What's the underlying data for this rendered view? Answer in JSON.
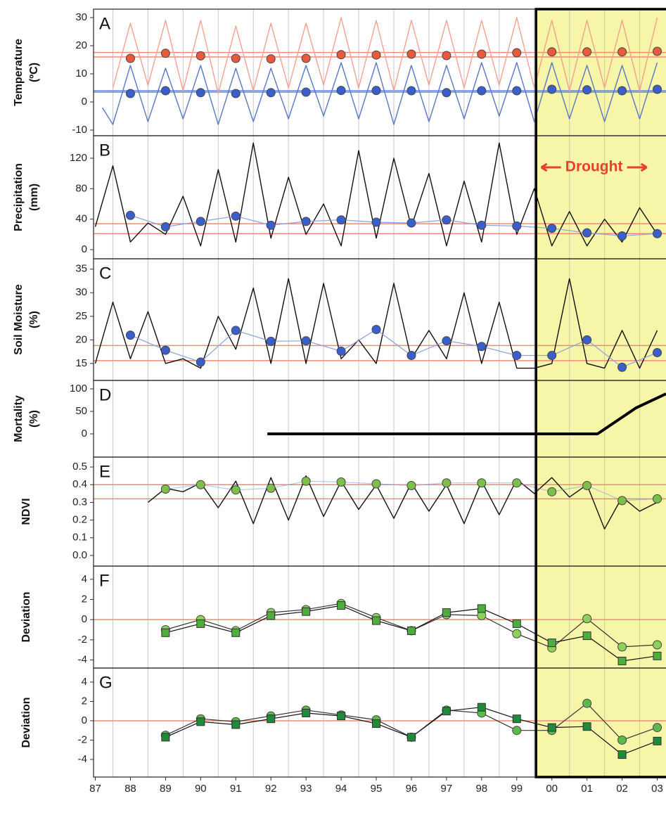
{
  "chart_data": [
    {
      "type": "line",
      "title": "A",
      "ylabel": [
        "Temperature",
        "(ºC)"
      ],
      "ylim": [
        -12,
        33
      ],
      "yticks": [
        -10,
        0,
        10,
        20,
        30
      ],
      "reference_lines": [
        {
          "value": 16,
          "color": "#f08a78"
        },
        {
          "value": 17.6,
          "color": "#f08a78"
        },
        {
          "value": 3.5,
          "color": "#6a86d8"
        },
        {
          "value": 4,
          "color": "#6a86d8"
        }
      ],
      "series": [
        {
          "style": "line",
          "color": "#f4a08c",
          "x": [
            1988.0,
            1988.5,
            1989.0,
            1989.5,
            1990.0,
            1990.5,
            1991.0,
            1991.5,
            1992.0,
            1992.5,
            1993.0,
            1993.5,
            1994.0,
            1994.5,
            1995.0,
            1995.5,
            1996.0,
            1996.5,
            1997.0,
            1997.5,
            1998.0,
            1998.5,
            1999.0,
            1999.5,
            2000.0,
            2000.5,
            2001.0,
            2001.5,
            2002.0,
            2002.5,
            2003.0,
            2003.5
          ],
          "values": [
            5,
            28,
            6,
            29,
            4,
            29,
            3,
            27,
            4,
            28,
            5,
            28,
            6,
            30,
            5,
            29,
            4,
            29,
            6,
            29,
            5,
            29,
            6,
            30,
            5,
            29,
            4,
            29,
            5,
            29,
            4,
            30
          ]
        },
        {
          "style": "line",
          "color": "#5878c8",
          "x": [
            1987.7,
            1988.0,
            1988.5,
            1989.0,
            1989.5,
            1990.0,
            1990.5,
            1991.0,
            1991.5,
            1992.0,
            1992.5,
            1993.0,
            1993.5,
            1994.0,
            1994.5,
            1995.0,
            1995.5,
            1996.0,
            1996.5,
            1997.0,
            1997.5,
            1998.0,
            1998.5,
            1999.0,
            1999.5,
            2000.0,
            2000.5,
            2001.0,
            2001.5,
            2002.0,
            2002.5,
            2003.0,
            2003.5
          ],
          "values": [
            -2,
            -8,
            13,
            -7,
            12,
            -6,
            13,
            -8,
            12,
            -7,
            12,
            -6,
            13,
            -5,
            14,
            -6,
            14,
            -8,
            13,
            -7,
            13,
            -6,
            14,
            -5,
            14,
            -7,
            14,
            -6,
            13,
            -7,
            13,
            -6,
            14
          ]
        },
        {
          "style": "dots",
          "color": "#e85a3c",
          "x": [
            1988.5,
            1989.5,
            1990.5,
            1991.5,
            1992.5,
            1993.5,
            1994.5,
            1995.5,
            1996.5,
            1997.5,
            1998.5,
            1999.5,
            2000.5,
            2001.5,
            2002.5,
            2003.5
          ],
          "values": [
            15.5,
            17.3,
            16.4,
            15.5,
            15.3,
            15.5,
            16.8,
            16.7,
            17,
            16.5,
            17,
            17.5,
            17.8,
            17.8,
            17.8,
            18
          ]
        },
        {
          "style": "dots",
          "color": "#3a5fcd",
          "x": [
            1988.5,
            1989.5,
            1990.5,
            1991.5,
            1992.5,
            1993.5,
            1994.5,
            1995.5,
            1996.5,
            1997.5,
            1998.5,
            1999.5,
            2000.5,
            2001.5,
            2002.5,
            2003.5
          ],
          "values": [
            3,
            4,
            3.3,
            3,
            3.3,
            3.5,
            4.1,
            4.1,
            4,
            3.3,
            4,
            4,
            4.5,
            4.3,
            4,
            4.5
          ]
        }
      ]
    },
    {
      "type": "line",
      "title": "B",
      "ylabel": [
        "Precipitation",
        "(mm)"
      ],
      "ylim": [
        -12,
        149.5
      ],
      "yticks": [
        0,
        40,
        80,
        120
      ],
      "annotation": "Drought",
      "reference_lines": [
        {
          "value": 34,
          "color": "#f08a78"
        },
        {
          "value": 21,
          "color": "#f08a78"
        }
      ],
      "series": [
        {
          "style": "line",
          "color": "#111111",
          "x": [
            1987.5,
            1988.0,
            1988.5,
            1989.0,
            1989.5,
            1990.0,
            1990.5,
            1991.0,
            1991.5,
            1992.0,
            1992.5,
            1993.0,
            1993.5,
            1994.0,
            1994.5,
            1995.0,
            1995.5,
            1996.0,
            1996.5,
            1997.0,
            1997.5,
            1998.0,
            1998.5,
            1999.0,
            1999.5,
            2000.0,
            2000.5,
            2001.0,
            2001.5,
            2002.0,
            2002.5,
            2003.0,
            2003.5
          ],
          "values": [
            30,
            110,
            10,
            35,
            20,
            70,
            5,
            105,
            10,
            140,
            15,
            95,
            20,
            60,
            5,
            130,
            15,
            120,
            30,
            100,
            5,
            90,
            10,
            140,
            20,
            80,
            5,
            50,
            5,
            40,
            10,
            55,
            20
          ]
        },
        {
          "style": "line+dots",
          "color": "#3a5fcd",
          "x": [
            1988.5,
            1989.5,
            1990.5,
            1991.5,
            1992.5,
            1993.5,
            1994.5,
            1995.5,
            1996.5,
            1997.5,
            1998.5,
            1999.5,
            2000.5,
            2001.5,
            2002.5,
            2003.5
          ],
          "values": [
            45,
            30,
            37,
            44,
            32,
            37,
            39,
            36,
            35,
            39,
            32,
            31,
            28,
            22,
            18,
            21
          ]
        }
      ]
    },
    {
      "type": "line",
      "title": "C",
      "ylabel": [
        "Soil Moisture",
        "(%)"
      ],
      "ylim": [
        11.4,
        37.2
      ],
      "yticks": [
        15,
        20,
        25,
        30,
        35
      ],
      "reference_lines": [
        {
          "value": 18.8,
          "color": "#f08a78"
        },
        {
          "value": 15.6,
          "color": "#f08a78"
        }
      ],
      "series": [
        {
          "style": "line",
          "color": "#111111",
          "x": [
            1987.5,
            1988.0,
            1988.5,
            1989.0,
            1989.5,
            1990.0,
            1990.5,
            1991.0,
            1991.5,
            1992.0,
            1992.5,
            1993.0,
            1993.5,
            1994.0,
            1994.5,
            1995.0,
            1995.5,
            1996.0,
            1996.5,
            1997.0,
            1997.5,
            1998.0,
            1998.5,
            1999.0,
            1999.5,
            2000.0,
            2000.5,
            2001.0,
            2001.5,
            2002.0,
            2002.5,
            2003.0,
            2003.5
          ],
          "values": [
            15,
            28,
            16,
            26,
            15,
            16,
            14,
            25,
            18,
            31,
            15,
            33,
            15,
            32,
            16,
            20,
            15,
            32,
            16,
            22,
            16,
            30,
            15,
            28,
            14,
            14,
            15,
            33,
            15,
            14,
            22,
            14,
            22
          ]
        },
        {
          "style": "line+dots",
          "color": "#3a5fcd",
          "x": [
            1988.5,
            1989.5,
            1990.5,
            1991.5,
            1992.5,
            1993.5,
            1994.5,
            1995.5,
            1996.5,
            1997.5,
            1998.5,
            1999.5,
            2000.5,
            2001.5,
            2002.5,
            2003.5
          ],
          "values": [
            21,
            17.8,
            15.3,
            22,
            19.7,
            19.8,
            17.6,
            22.2,
            16.7,
            19.8,
            18.6,
            16.7,
            16.7,
            20,
            14.2,
            17.3
          ]
        }
      ]
    },
    {
      "type": "line",
      "title": "D",
      "ylabel": [
        "Mortality",
        "(%)"
      ],
      "ylim": [
        -51.6,
        118.75
      ],
      "yticks": [
        0,
        50,
        100
      ],
      "series": [
        {
          "style": "thick-line",
          "color": "#000000",
          "x": [
            1992.4,
            2001.8,
            2002.9,
            2003.75
          ],
          "values": [
            0,
            0,
            58,
            89
          ]
        }
      ]
    },
    {
      "type": "line",
      "title": "E",
      "ylabel": [
        "NDVI"
      ],
      "ylim": [
        -0.06,
        0.556
      ],
      "yticks": [
        {
          "value": 0,
          "label": "0.0"
        },
        0.1,
        0.2,
        0.3,
        0.4,
        0.5
      ],
      "reference_lines": [
        {
          "value": 0.4,
          "color": "#f08a78"
        },
        {
          "value": 0.32,
          "color": "#f08a78"
        }
      ],
      "series": [
        {
          "style": "line",
          "color": "#111111",
          "x": [
            1989.0,
            1989.5,
            1990.0,
            1990.5,
            1991.0,
            1991.5,
            1992.0,
            1992.5,
            1993.0,
            1993.5,
            1994.0,
            1994.5,
            1995.0,
            1995.5,
            1996.0,
            1996.5,
            1997.0,
            1997.5,
            1998.0,
            1998.5,
            1999.0,
            1999.5,
            2000.0,
            2000.5,
            2001.0,
            2001.5,
            2002.0,
            2002.5,
            2003.0,
            2003.5
          ],
          "values": [
            0.3,
            0.38,
            0.36,
            0.41,
            0.27,
            0.42,
            0.18,
            0.44,
            0.2,
            0.45,
            0.22,
            0.42,
            0.26,
            0.4,
            0.21,
            0.41,
            0.25,
            0.4,
            0.18,
            0.42,
            0.23,
            0.43,
            0.35,
            0.44,
            0.33,
            0.4,
            0.15,
            0.33,
            0.25,
            0.3
          ]
        },
        {
          "style": "line+dots",
          "color": "#7cc04a",
          "x": [
            1989.5,
            1990.5,
            1991.5,
            1992.5,
            1993.5,
            1994.5,
            1995.5,
            1996.5,
            1997.5,
            1998.5,
            1999.5,
            2000.5,
            2001.5,
            2002.5,
            2003.5
          ],
          "values": [
            0.375,
            0.4,
            0.37,
            0.38,
            0.42,
            0.415,
            0.405,
            0.395,
            0.41,
            0.41,
            0.41,
            0.36,
            0.395,
            0.31,
            0.32
          ]
        }
      ]
    },
    {
      "type": "line",
      "title": "F",
      "ylabel": [
        "Deviation"
      ],
      "ylim": [
        -4.8,
        5.31
      ],
      "yticks": [
        -4,
        -2,
        0,
        2,
        4
      ],
      "reference_lines": [
        {
          "value": 0,
          "color": "#f08a78"
        }
      ],
      "series": [
        {
          "style": "line+dots",
          "color": "#8fd05a",
          "x": [
            1989.5,
            1990.5,
            1991.5,
            1992.5,
            1993.5,
            1994.5,
            1995.5,
            1996.5,
            1997.5,
            1998.5,
            1999.5,
            2000.5,
            2001.5,
            2002.5,
            2003.5
          ],
          "values": [
            -1,
            0,
            -1.1,
            0.7,
            1,
            1.6,
            0.2,
            -1.1,
            0.5,
            0.4,
            -1.4,
            -2.8,
            0.1,
            -2.7,
            -2.5
          ]
        },
        {
          "style": "line+squares",
          "color": "#4caf3c",
          "x": [
            1989.5,
            1990.5,
            1991.5,
            1992.5,
            1993.5,
            1994.5,
            1995.5,
            1996.5,
            1997.5,
            1998.5,
            1999.5,
            2000.5,
            2001.5,
            2002.5,
            2003.5
          ],
          "values": [
            -1.3,
            -0.4,
            -1.3,
            0.4,
            0.8,
            1.4,
            -0.1,
            -1.1,
            0.7,
            1.1,
            -0.4,
            -2.3,
            -1.6,
            -4.1,
            -3.6
          ]
        }
      ]
    },
    {
      "type": "line",
      "title": "G",
      "ylabel": [
        "Deviation"
      ],
      "ylim": [
        -5.82,
        5.45
      ],
      "yticks": [
        -4,
        -2,
        0,
        2,
        4
      ],
      "reference_lines": [
        {
          "value": 0,
          "color": "#f08a78"
        }
      ],
      "xlim": [
        1987.45,
        2003.75
      ],
      "xticks": [
        {
          "value": 1987.5,
          "label": "87"
        },
        {
          "value": 1988.5,
          "label": "88"
        },
        {
          "value": 1989.5,
          "label": "89"
        },
        {
          "value": 1990.5,
          "label": "90"
        },
        {
          "value": 1991.5,
          "label": "91"
        },
        {
          "value": 1992.5,
          "label": "92"
        },
        {
          "value": 1993.5,
          "label": "93"
        },
        {
          "value": 1994.5,
          "label": "94"
        },
        {
          "value": 1995.5,
          "label": "95"
        },
        {
          "value": 1996.5,
          "label": "96"
        },
        {
          "value": 1997.5,
          "label": "97"
        },
        {
          "value": 1998.5,
          "label": "98"
        },
        {
          "value": 1999.5,
          "label": "99"
        },
        {
          "value": 2000.5,
          "label": "00"
        },
        {
          "value": 2001.5,
          "label": "01"
        },
        {
          "value": 2002.5,
          "label": "02"
        },
        {
          "value": 2003.5,
          "label": "03"
        }
      ],
      "xgrid": [
        1988,
        1989,
        1990,
        1991,
        1992,
        1993,
        1994,
        1995,
        1996,
        1997,
        1998,
        1999,
        2000,
        2001,
        2002,
        2003
      ],
      "highlight": {
        "from": 2000.05,
        "to": 2003.75,
        "color": "#f6f5a8"
      },
      "series": [
        {
          "style": "line+dots",
          "color": "#5cba4a",
          "x": [
            1989.5,
            1990.5,
            1991.5,
            1992.5,
            1993.5,
            1994.5,
            1995.5,
            1996.5,
            1997.5,
            1998.5,
            1999.5,
            2000.5,
            2001.5,
            2002.5,
            2003.5
          ],
          "values": [
            -1.5,
            0.2,
            -0.1,
            0.5,
            1.1,
            0.6,
            0.1,
            -1.7,
            1.1,
            0.8,
            -1,
            -1,
            1.8,
            -2,
            -0.7
          ]
        },
        {
          "style": "line+squares",
          "color": "#1f8a3a",
          "x": [
            1989.5,
            1990.5,
            1991.5,
            1992.5,
            1993.5,
            1994.5,
            1995.5,
            1996.5,
            1997.5,
            1998.5,
            1999.5,
            2000.5,
            2001.5,
            2002.5,
            2003.5
          ],
          "values": [
            -1.7,
            -0.1,
            -0.4,
            0.2,
            0.8,
            0.5,
            -0.3,
            -1.7,
            1,
            1.4,
            0.2,
            -0.7,
            -0.6,
            -3.5,
            -2.1
          ]
        }
      ]
    }
  ]
}
